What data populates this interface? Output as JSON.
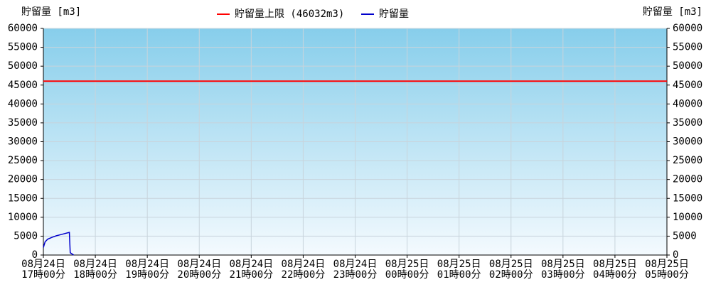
{
  "chart_data": {
    "type": "line",
    "y_label": "貯留量 [m3]",
    "y2_label": "貯留量 [m3]",
    "xlim": [
      "08-24 17:00",
      "08-25 05:00"
    ],
    "xticks": [
      {
        "value": "08-24 17:00",
        "label": [
          "08月24日",
          "17時00分"
        ]
      },
      {
        "value": "08-24 18:00",
        "label": [
          "08月24日",
          "18時00分"
        ]
      },
      {
        "value": "08-24 19:00",
        "label": [
          "08月24日",
          "19時00分"
        ]
      },
      {
        "value": "08-24 20:00",
        "label": [
          "08月24日",
          "20時00分"
        ]
      },
      {
        "value": "08-24 21:00",
        "label": [
          "08月24日",
          "21時00分"
        ]
      },
      {
        "value": "08-24 22:00",
        "label": [
          "08月24日",
          "22時00分"
        ]
      },
      {
        "value": "08-24 23:00",
        "label": [
          "08月24日",
          "23時00分"
        ]
      },
      {
        "value": "08-25 00:00",
        "label": [
          "08月25日",
          "00時00分"
        ]
      },
      {
        "value": "08-25 01:00",
        "label": [
          "08月25日",
          "01時00分"
        ]
      },
      {
        "value": "08-25 02:00",
        "label": [
          "08月25日",
          "02時00分"
        ]
      },
      {
        "value": "08-25 03:00",
        "label": [
          "08月25日",
          "03時00分"
        ]
      },
      {
        "value": "08-25 04:00",
        "label": [
          "08月25日",
          "04時00分"
        ]
      },
      {
        "value": "08-25 05:00",
        "label": [
          "08月25日",
          "05時00分"
        ]
      }
    ],
    "ylim": [
      0,
      60000
    ],
    "yticks": [
      0,
      5000,
      10000,
      15000,
      20000,
      25000,
      30000,
      35000,
      40000,
      45000,
      50000,
      55000,
      60000
    ],
    "y2lim": [
      0,
      60000
    ],
    "y2ticks": [
      0,
      5000,
      10000,
      15000,
      20000,
      25000,
      30000,
      35000,
      40000,
      45000,
      50000,
      55000,
      60000
    ],
    "grid": true,
    "limit": {
      "name": "貯留量上限 (46032m3)",
      "color": "#ff0000",
      "value": 46032
    },
    "series": [
      {
        "name": "貯留量",
        "color": "#0000cc",
        "x": [
          "08-24 17:00",
          "08-24 17:02",
          "08-24 17:05",
          "08-24 17:10",
          "08-24 17:15",
          "08-24 17:20",
          "08-24 17:25",
          "08-24 17:30",
          "08-24 17:31",
          "08-24 17:35"
        ],
        "values": [
          2000,
          3500,
          4200,
          4700,
          5100,
          5400,
          5700,
          6000,
          600,
          0
        ]
      }
    ]
  }
}
